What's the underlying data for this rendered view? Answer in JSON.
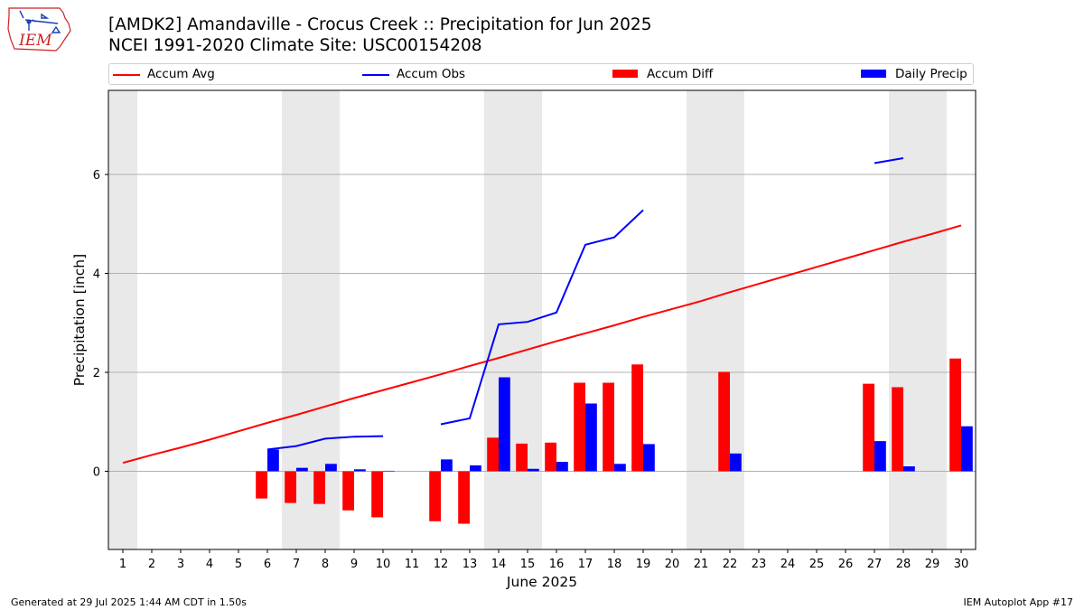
{
  "header": {
    "logo_text": "IEM",
    "title_line1": "[AMDK2] Amandaville - Crocus Creek :: Precipitation for Jun 2025",
    "title_line2": "NCEI 1991-2020 Climate Site: USC00154208"
  },
  "legend": {
    "items": [
      {
        "label": "Accum Avg",
        "kind": "line",
        "color": "#ff0000"
      },
      {
        "label": "Accum Obs",
        "kind": "line",
        "color": "#0000ff"
      },
      {
        "label": "Accum Diff",
        "kind": "bar",
        "color": "#ff0000"
      },
      {
        "label": "Daily Precip",
        "kind": "bar",
        "color": "#0000ff"
      }
    ]
  },
  "chart_data": {
    "type": "bar",
    "xlabel": "June 2025",
    "ylabel": "Precipitation [inch]",
    "x_ticks": [
      1,
      2,
      3,
      4,
      5,
      6,
      7,
      8,
      9,
      10,
      11,
      12,
      13,
      14,
      15,
      16,
      17,
      18,
      19,
      20,
      21,
      22,
      23,
      24,
      25,
      26,
      27,
      28,
      29,
      30
    ],
    "xlim": [
      0.5,
      30.5
    ],
    "y_ticks": [
      0,
      2,
      4,
      6
    ],
    "ylim": [
      -1.58,
      7.7
    ],
    "grid": "y-major",
    "weekend_shading": [
      [
        0.5,
        1.5
      ],
      [
        6.5,
        8.5
      ],
      [
        13.5,
        15.5
      ],
      [
        20.5,
        22.5
      ],
      [
        27.5,
        29.5
      ]
    ],
    "weekend_color": "#e9e9e9",
    "series": [
      {
        "name": "Accum Avg",
        "type": "line",
        "color": "#ff0000",
        "points": [
          [
            1,
            0.17
          ],
          [
            2,
            0.33
          ],
          [
            3,
            0.48
          ],
          [
            4,
            0.64
          ],
          [
            5,
            0.81
          ],
          [
            6,
            0.98
          ],
          [
            7,
            1.14
          ],
          [
            8,
            1.31
          ],
          [
            9,
            1.48
          ],
          [
            10,
            1.64
          ],
          [
            11,
            1.8
          ],
          [
            12,
            1.96
          ],
          [
            13,
            2.13
          ],
          [
            14,
            2.29
          ],
          [
            15,
            2.46
          ],
          [
            16,
            2.63
          ],
          [
            17,
            2.79
          ],
          [
            18,
            2.95
          ],
          [
            19,
            3.12
          ],
          [
            20,
            3.28
          ],
          [
            21,
            3.44
          ],
          [
            22,
            3.62
          ],
          [
            23,
            3.79
          ],
          [
            24,
            3.96
          ],
          [
            25,
            4.13
          ],
          [
            26,
            4.3
          ],
          [
            27,
            4.47
          ],
          [
            28,
            4.64
          ],
          [
            29,
            4.8
          ],
          [
            30,
            4.97
          ]
        ]
      },
      {
        "name": "Accum Obs",
        "type": "line",
        "color": "#0000ff",
        "segments": [
          [
            [
              6,
              0.44
            ],
            [
              7,
              0.51
            ],
            [
              8,
              0.66
            ],
            [
              9,
              0.7
            ],
            [
              10,
              0.71
            ]
          ],
          [
            [
              12,
              0.95
            ],
            [
              13,
              1.07
            ],
            [
              14,
              2.97
            ],
            [
              15,
              3.02
            ],
            [
              16,
              3.21
            ],
            [
              17,
              4.58
            ],
            [
              18,
              4.73
            ],
            [
              19,
              5.28
            ]
          ],
          [
            [
              27,
              6.23
            ],
            [
              28,
              6.33
            ]
          ]
        ]
      },
      {
        "name": "Accum Diff",
        "type": "bar",
        "color": "#ff0000",
        "points": [
          [
            6,
            -0.55
          ],
          [
            7,
            -0.64
          ],
          [
            8,
            -0.66
          ],
          [
            9,
            -0.79
          ],
          [
            10,
            -0.93
          ],
          [
            12,
            -1.01
          ],
          [
            13,
            -1.06
          ],
          [
            14,
            0.68
          ],
          [
            15,
            0.56
          ],
          [
            16,
            0.58
          ],
          [
            17,
            1.79
          ],
          [
            18,
            1.79
          ],
          [
            19,
            2.16
          ],
          [
            22,
            2.01
          ],
          [
            27,
            1.77
          ],
          [
            28,
            1.7
          ],
          [
            30,
            2.28
          ]
        ]
      },
      {
        "name": "Daily Precip",
        "type": "bar",
        "color": "#0000ff",
        "points": [
          [
            6,
            0.44
          ],
          [
            7,
            0.07
          ],
          [
            8,
            0.15
          ],
          [
            9,
            0.04
          ],
          [
            10,
            0.01
          ],
          [
            12,
            0.24
          ],
          [
            13,
            0.12
          ],
          [
            14,
            1.9
          ],
          [
            15,
            0.05
          ],
          [
            16,
            0.19
          ],
          [
            17,
            1.37
          ],
          [
            18,
            0.15
          ],
          [
            19,
            0.55
          ],
          [
            22,
            0.36
          ],
          [
            27,
            0.61
          ],
          [
            28,
            0.1
          ],
          [
            30,
            0.91
          ]
        ]
      }
    ]
  },
  "footer": {
    "left": "Generated at 29 Jul 2025 1:44 AM CDT in 1.50s",
    "right": "IEM Autoplot App #17"
  }
}
